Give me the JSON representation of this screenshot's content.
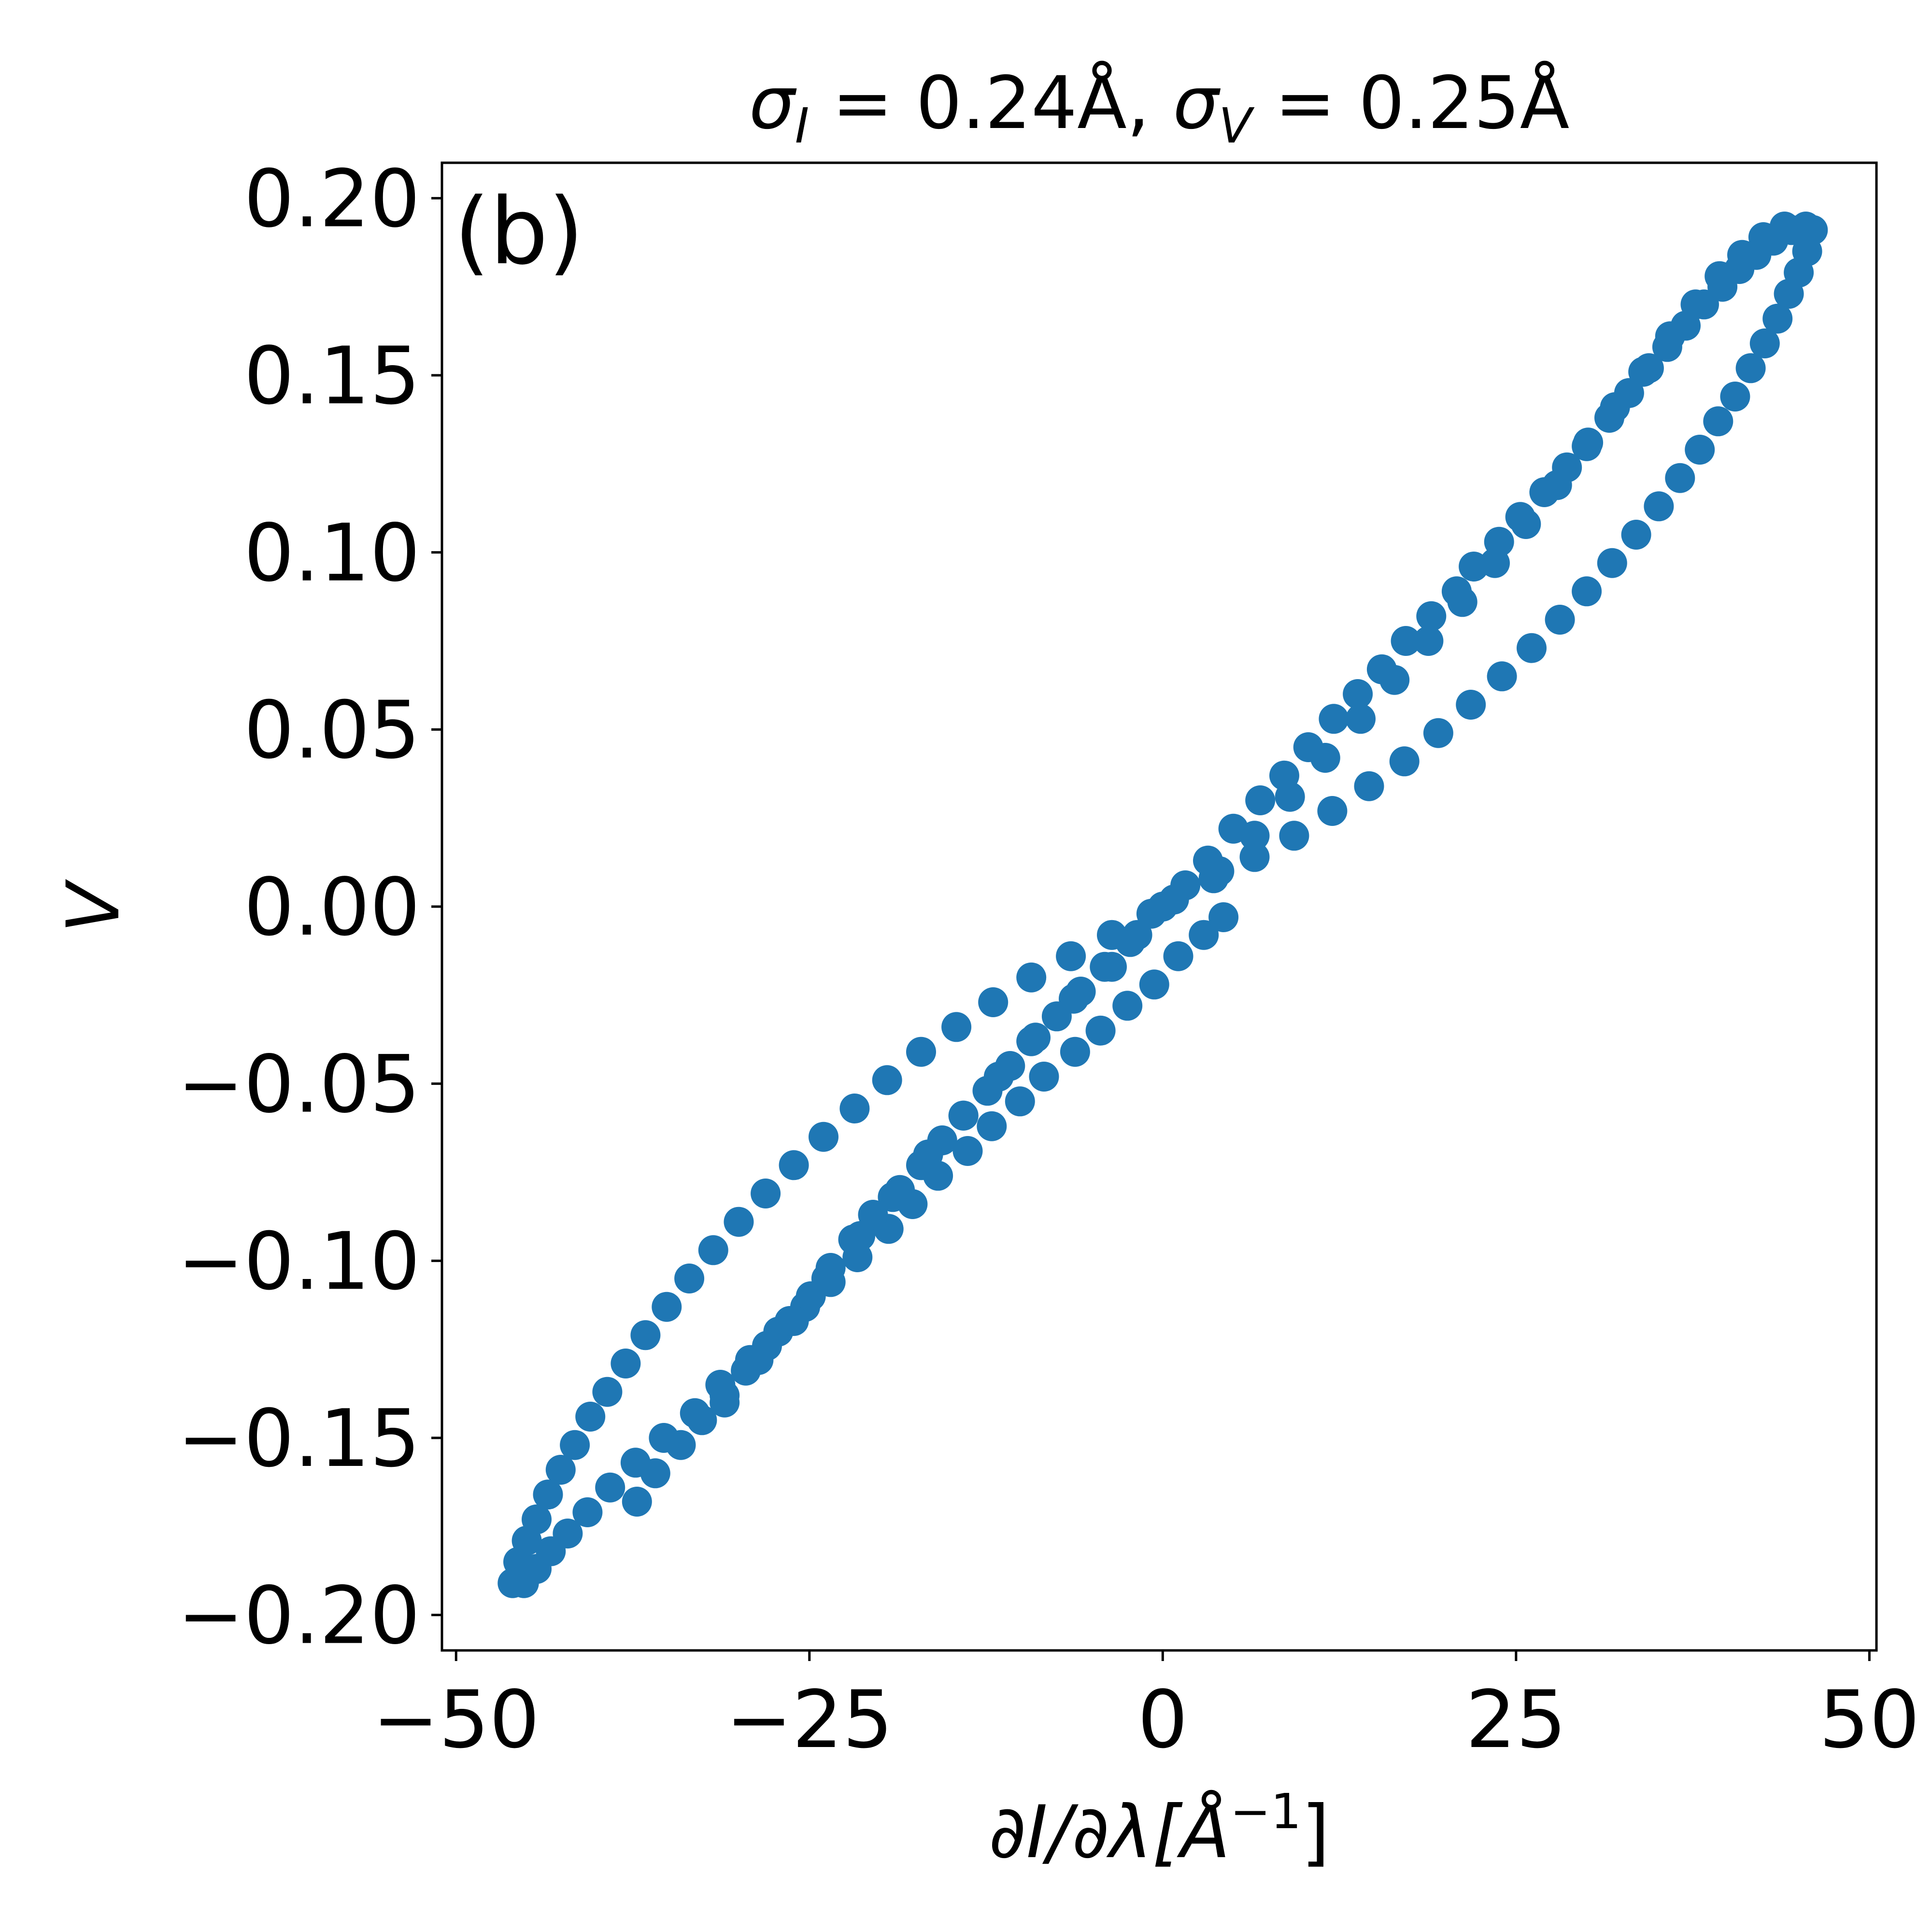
{
  "chart_data": {
    "type": "scatter",
    "title": "σ_I = 0.24Å, σ_V = 0.25Å",
    "title_parts": {
      "s1": "σ",
      "sub1": "I",
      "eq1": " = 0.24Å, ",
      "s2": "σ",
      "sub2": "V",
      "eq2": " = 0.25Å"
    },
    "xlabel": "∂I/∂λ[Å⁻¹]",
    "xlabel_parts": {
      "main": "∂I/∂λ[Å",
      "sup": "−1",
      "close": "]"
    },
    "ylabel": "V",
    "annotation": "(b)",
    "xlim": [
      -51,
      50.5
    ],
    "ylim": [
      -0.21,
      0.21
    ],
    "xticks": [
      -50,
      -25,
      0,
      25,
      50
    ],
    "xtick_labels": [
      "−50",
      "−25",
      "0",
      "25",
      "50"
    ],
    "yticks": [
      -0.2,
      -0.15,
      -0.1,
      -0.05,
      0.0,
      0.05,
      0.1,
      0.15,
      0.2
    ],
    "ytick_labels": [
      "−0.20",
      "−0.15",
      "−0.10",
      "−0.05",
      "0.00",
      "0.05",
      "0.10",
      "0.15",
      "0.20"
    ],
    "grid": false,
    "legend": "none",
    "series": [
      {
        "color": "#1f77b4",
        "points": [
          [
            -46.0,
            -0.191
          ],
          [
            -45.6,
            -0.185
          ],
          [
            -45.0,
            -0.179
          ],
          [
            -44.3,
            -0.173
          ],
          [
            -43.5,
            -0.166
          ],
          [
            -42.6,
            -0.159
          ],
          [
            -41.6,
            -0.152
          ],
          [
            -40.5,
            -0.144
          ],
          [
            -39.3,
            -0.137
          ],
          [
            -38.0,
            -0.129
          ],
          [
            -36.6,
            -0.121
          ],
          [
            -35.1,
            -0.113
          ],
          [
            -33.5,
            -0.105
          ],
          [
            -31.8,
            -0.097
          ],
          [
            -30.0,
            -0.089
          ],
          [
            -28.1,
            -0.081
          ],
          [
            -26.1,
            -0.073
          ],
          [
            -24.0,
            -0.065
          ],
          [
            -21.8,
            -0.057
          ],
          [
            -19.5,
            -0.049
          ],
          [
            -17.1,
            -0.041
          ],
          [
            -14.6,
            -0.034
          ],
          [
            -12.0,
            -0.027
          ],
          [
            -9.3,
            -0.02
          ],
          [
            -6.5,
            -0.014
          ],
          [
            -3.6,
            -0.008
          ],
          [
            -0.8,
            -0.002
          ],
          [
            -45.2,
            -0.191
          ],
          [
            -44.3,
            -0.187
          ],
          [
            -43.3,
            -0.182
          ],
          [
            -42.1,
            -0.177
          ],
          [
            -40.7,
            -0.171
          ],
          [
            -39.1,
            -0.164
          ],
          [
            -37.3,
            -0.157
          ],
          [
            -35.3,
            -0.15
          ],
          [
            -33.1,
            -0.143
          ],
          [
            -31.3,
            -0.135
          ],
          [
            -29.2,
            -0.128
          ],
          [
            -27.2,
            -0.12
          ],
          [
            -25.3,
            -0.113
          ],
          [
            -23.5,
            -0.106
          ],
          [
            -21.6,
            -0.099
          ],
          [
            -19.4,
            -0.091
          ],
          [
            -17.7,
            -0.084
          ],
          [
            -15.9,
            -0.076
          ],
          [
            -13.8,
            -0.069
          ],
          [
            -12.1,
            -0.062
          ],
          [
            -10.1,
            -0.055
          ],
          [
            -8.4,
            -0.048
          ],
          [
            -6.2,
            -0.041
          ],
          [
            -4.4,
            -0.035
          ],
          [
            -2.5,
            -0.028
          ],
          [
            -0.6,
            -0.022
          ],
          [
            1.1,
            -0.014
          ],
          [
            2.9,
            -0.008
          ],
          [
            4.3,
            -0.003
          ],
          [
            -37.2,
            -0.168
          ],
          [
            -35.9,
            -0.16
          ],
          [
            -34.1,
            -0.152
          ],
          [
            -32.6,
            -0.145
          ],
          [
            -31.0,
            -0.138
          ],
          [
            -29.5,
            -0.131
          ],
          [
            -28.0,
            -0.124
          ],
          [
            -26.4,
            -0.117
          ],
          [
            -24.9,
            -0.11
          ],
          [
            -23.5,
            -0.102
          ],
          [
            -21.9,
            -0.094
          ],
          [
            -20.5,
            -0.087
          ],
          [
            -18.6,
            -0.08
          ],
          [
            -17.1,
            -0.073
          ],
          [
            -15.6,
            -0.066
          ],
          [
            -14.1,
            -0.059
          ],
          [
            -12.4,
            -0.052
          ],
          [
            -10.8,
            -0.045
          ],
          [
            -9.3,
            -0.038
          ],
          [
            -7.5,
            -0.031
          ],
          [
            -5.8,
            -0.024
          ],
          [
            -4.1,
            -0.017
          ],
          [
            -2.3,
            -0.01
          ],
          [
            -31.0,
            -0.14
          ],
          [
            -28.6,
            -0.128
          ],
          [
            -26.1,
            -0.117
          ],
          [
            -23.8,
            -0.105
          ],
          [
            -21.4,
            -0.093
          ],
          [
            -19.1,
            -0.082
          ],
          [
            -16.6,
            -0.07
          ],
          [
            -14.1,
            -0.059
          ],
          [
            -11.6,
            -0.048
          ],
          [
            -9.0,
            -0.037
          ],
          [
            -6.3,
            -0.026
          ],
          [
            -3.6,
            -0.017
          ],
          [
            -1.8,
            -0.008
          ],
          [
            0.0,
            0.0
          ],
          [
            0.8,
            0.002
          ],
          [
            3.6,
            0.008
          ],
          [
            6.5,
            0.014
          ],
          [
            9.3,
            0.02
          ],
          [
            12.0,
            0.027
          ],
          [
            14.6,
            0.034
          ],
          [
            17.1,
            0.041
          ],
          [
            19.5,
            0.049
          ],
          [
            21.8,
            0.057
          ],
          [
            24.0,
            0.065
          ],
          [
            26.1,
            0.073
          ],
          [
            28.1,
            0.081
          ],
          [
            30.0,
            0.089
          ],
          [
            31.8,
            0.097
          ],
          [
            33.5,
            0.105
          ],
          [
            35.1,
            0.113
          ],
          [
            36.6,
            0.121
          ],
          [
            38.0,
            0.129
          ],
          [
            39.3,
            0.137
          ],
          [
            40.5,
            0.144
          ],
          [
            41.6,
            0.152
          ],
          [
            42.6,
            0.159
          ],
          [
            43.5,
            0.166
          ],
          [
            44.3,
            0.173
          ],
          [
            45.0,
            0.179
          ],
          [
            45.6,
            0.185
          ],
          [
            46.0,
            0.191
          ],
          [
            1.6,
            0.006
          ],
          [
            3.2,
            0.013
          ],
          [
            5.0,
            0.022
          ],
          [
            6.9,
            0.03
          ],
          [
            8.6,
            0.037
          ],
          [
            10.3,
            0.045
          ],
          [
            12.1,
            0.053
          ],
          [
            13.8,
            0.06
          ],
          [
            15.5,
            0.067
          ],
          [
            17.2,
            0.075
          ],
          [
            19.0,
            0.082
          ],
          [
            20.8,
            0.089
          ],
          [
            22.0,
            0.096
          ],
          [
            23.8,
            0.103
          ],
          [
            25.3,
            0.11
          ],
          [
            27.0,
            0.117
          ],
          [
            28.6,
            0.124
          ],
          [
            30.1,
            0.131
          ],
          [
            31.6,
            0.138
          ],
          [
            33.0,
            0.145
          ],
          [
            34.4,
            0.152
          ],
          [
            35.7,
            0.158
          ],
          [
            37.0,
            0.164
          ],
          [
            38.3,
            0.17
          ],
          [
            39.6,
            0.175
          ],
          [
            40.8,
            0.18
          ],
          [
            42.0,
            0.184
          ],
          [
            43.2,
            0.188
          ],
          [
            44.5,
            0.191
          ],
          [
            45.5,
            0.192
          ],
          [
            4.0,
            0.01
          ],
          [
            6.5,
            0.02
          ],
          [
            9.0,
            0.031
          ],
          [
            11.5,
            0.042
          ],
          [
            14.0,
            0.053
          ],
          [
            16.4,
            0.064
          ],
          [
            18.8,
            0.075
          ],
          [
            21.2,
            0.086
          ],
          [
            23.5,
            0.097
          ],
          [
            25.7,
            0.108
          ],
          [
            27.9,
            0.119
          ],
          [
            30.0,
            0.13
          ],
          [
            32.0,
            0.141
          ],
          [
            34.0,
            0.151
          ],
          [
            35.9,
            0.161
          ],
          [
            37.7,
            0.17
          ],
          [
            39.4,
            0.178
          ],
          [
            41.0,
            0.184
          ],
          [
            42.5,
            0.189
          ],
          [
            44.0,
            0.192
          ]
        ]
      }
    ]
  }
}
